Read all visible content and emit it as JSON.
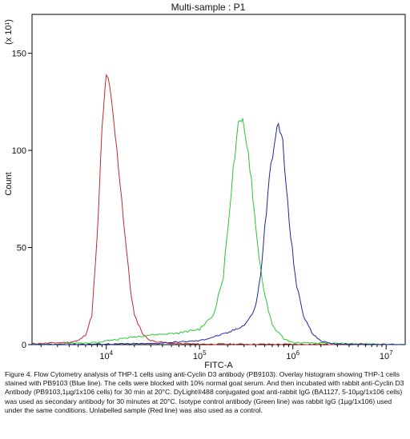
{
  "chart_data": {
    "type": "line",
    "title": "Multi-sample : P1",
    "xlabel": "FITC-A",
    "ylabel": "Count",
    "y_multiplier_label": "(x 10¹)",
    "x_scale": "log",
    "xlim": [
      1600,
      16000000
    ],
    "ylim": [
      0,
      170
    ],
    "y_ticks": [
      0,
      50,
      100,
      150
    ],
    "x_ticks": [
      {
        "value": 10000,
        "base": "10",
        "exp": "4"
      },
      {
        "value": 100000,
        "base": "10",
        "exp": "5"
      },
      {
        "value": 1000000,
        "base": "10",
        "exp": "6"
      },
      {
        "value": 10000000,
        "base": "10",
        "exp": "7"
      }
    ],
    "grid": false,
    "legend": "none",
    "series": [
      {
        "color": "#c0282d",
        "points": [
          [
            1600,
            0.5
          ],
          [
            2500,
            0.8
          ],
          [
            4000,
            1.2
          ],
          [
            5000,
            2
          ],
          [
            6000,
            5
          ],
          [
            7000,
            15
          ],
          [
            8000,
            55
          ],
          [
            9000,
            110
          ],
          [
            10000,
            140
          ],
          [
            11000,
            130
          ],
          [
            12000,
            115
          ],
          [
            14000,
            85
          ],
          [
            16000,
            55
          ],
          [
            18000,
            30
          ],
          [
            20000,
            15
          ],
          [
            25000,
            5
          ],
          [
            30000,
            2
          ],
          [
            50000,
            0.6
          ],
          [
            100000,
            0.3
          ],
          [
            1000000,
            0.2
          ],
          [
            16000000,
            0
          ]
        ]
      },
      {
        "color": "#28c830",
        "points": [
          [
            1600,
            0
          ],
          [
            8000,
            1
          ],
          [
            10000,
            2
          ],
          [
            20000,
            4
          ],
          [
            30000,
            5
          ],
          [
            60000,
            6
          ],
          [
            100000,
            8
          ],
          [
            140000,
            15
          ],
          [
            180000,
            35
          ],
          [
            200000,
            60
          ],
          [
            230000,
            90
          ],
          [
            260000,
            112
          ],
          [
            290000,
            115
          ],
          [
            320000,
            105
          ],
          [
            360000,
            85
          ],
          [
            400000,
            60
          ],
          [
            450000,
            40
          ],
          [
            500000,
            25
          ],
          [
            600000,
            10
          ],
          [
            800000,
            3
          ],
          [
            1000000,
            1
          ],
          [
            16000000,
            0
          ]
        ]
      },
      {
        "color": "#1e2896",
        "points": [
          [
            1600,
            0
          ],
          [
            30000,
            0.5
          ],
          [
            100000,
            2
          ],
          [
            200000,
            6
          ],
          [
            300000,
            10
          ],
          [
            350000,
            14
          ],
          [
            400000,
            20
          ],
          [
            450000,
            35
          ],
          [
            500000,
            60
          ],
          [
            560000,
            85
          ],
          [
            630000,
            105
          ],
          [
            700000,
            112
          ],
          [
            780000,
            105
          ],
          [
            850000,
            80
          ],
          [
            950000,
            55
          ],
          [
            1100000,
            30
          ],
          [
            1300000,
            15
          ],
          [
            1600000,
            6
          ],
          [
            2000000,
            2
          ],
          [
            2500000,
            0.5
          ],
          [
            16000000,
            0
          ]
        ]
      }
    ]
  },
  "caption": "Figure 4. Flow Cytometry analysis of THP-1 cells using anti-Cyclin D3 antibody (PB9103). Overlay histogram showing THP-1 cells stained with PB9103 (Blue line). The cells were blocked with 10% normal goat serum. And then incubated with rabbit anti-Cyclin D3 Antibody (PB9103,1µg/1x106 cells) for 30 min at 20°C. DyLight®488 conjugated goat anti-rabbit IgG (BA1127, 5-10µg/1x106 cells) was used as secondary antibody for 30 minutes at 20°C. Isotype control antibody (Green line) was rabbit IgG (1µg/1x106) used under the same conditions. Unlabelled sample (Red line) was also used as a control."
}
